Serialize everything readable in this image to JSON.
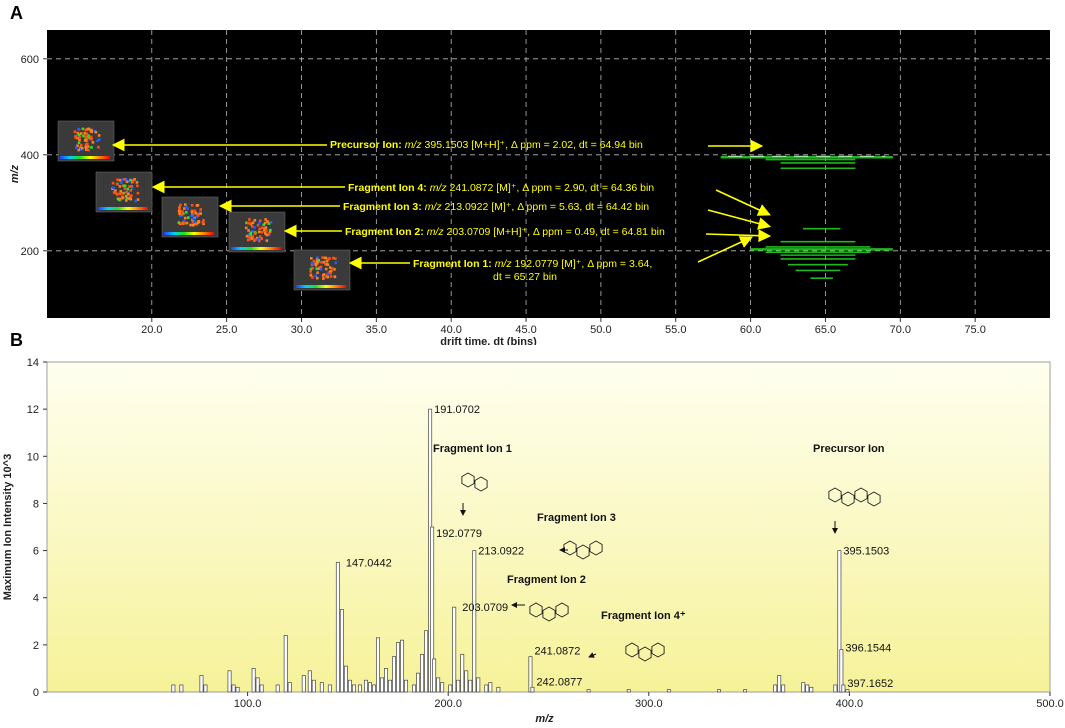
{
  "panels": {
    "a_label": "A",
    "b_label": "B"
  },
  "chart_data": [
    {
      "type": "scatter",
      "panel": "A",
      "xlabel": "drift time, dt (bins)",
      "ylabel": "m/z",
      "xlim": [
        13,
        80
      ],
      "ylim": [
        60,
        660
      ],
      "xticks": [
        "20.0",
        "25.0",
        "30.0",
        "35.0",
        "40.0",
        "45.0",
        "50.0",
        "55.0",
        "60.0",
        "65.0",
        "70.0",
        "75.0"
      ],
      "xtick_values": [
        20,
        25,
        30,
        35,
        40,
        45,
        50,
        55,
        60,
        65,
        70,
        75
      ],
      "yticks": [
        "200",
        "400",
        "600"
      ],
      "ytick_values": [
        200,
        400,
        600
      ],
      "grid": true,
      "background": "#000000",
      "trace_color": "#22cc22",
      "traces": [
        {
          "mz": 395,
          "dt_start": 58,
          "dt_end": 69.5
        },
        {
          "mz": 390,
          "dt_start": 61,
          "dt_end": 67
        },
        {
          "mz": 383,
          "dt_start": 62,
          "dt_end": 67
        },
        {
          "mz": 372,
          "dt_start": 62,
          "dt_end": 67
        },
        {
          "mz": 246,
          "dt_start": 63.5,
          "dt_end": 66
        },
        {
          "mz": 219,
          "dt_start": 62,
          "dt_end": 67
        },
        {
          "mz": 208,
          "dt_start": 61,
          "dt_end": 68
        },
        {
          "mz": 203,
          "dt_start": 60,
          "dt_end": 69.5
        },
        {
          "mz": 197,
          "dt_start": 61,
          "dt_end": 68
        },
        {
          "mz": 191,
          "dt_start": 62,
          "dt_end": 67
        },
        {
          "mz": 183,
          "dt_start": 62,
          "dt_end": 67
        },
        {
          "mz": 171,
          "dt_start": 62.5,
          "dt_end": 66.5
        },
        {
          "mz": 159,
          "dt_start": 63,
          "dt_end": 66
        },
        {
          "mz": 143,
          "dt_start": 64,
          "dt_end": 65.5
        }
      ],
      "annotations": [
        {
          "bold": "Precursor Ion: ",
          "italic": "m/z",
          "rest": " 395.1503 [M+H]⁺, Δ ppm = 2.02, dt = 64.94 bin"
        },
        {
          "bold": "Fragment Ion 4: ",
          "italic": "m/z",
          "rest": " 241.0872 [M]⁺, Δ ppm = 2.90, dt = 64.36 bin"
        },
        {
          "bold": "Fragment Ion 3: ",
          "italic": "m/z",
          "rest": " 213.0922 [M]⁺, Δ ppm = 5.63, dt = 64.42 bin"
        },
        {
          "bold": "Fragment Ion 2: ",
          "italic": "m/z",
          "rest": " 203.0709 [M+H]⁺, Δ ppm = 0.49, dt = 64.81 bin"
        },
        {
          "bold": "Fragment Ion 1: ",
          "italic": "m/z",
          "rest": " 192.0779 [M]⁺, Δ ppm = 3.64,",
          "line2": "dt = 65.27 bin"
        }
      ]
    },
    {
      "type": "bar",
      "panel": "B",
      "xlabel": "m/z",
      "ylabel": "Maximum Ion Intensity 10^3",
      "xlim": [
        0,
        500
      ],
      "ylim": [
        0,
        14
      ],
      "xticks": [
        "100.0",
        "200.0",
        "300.0",
        "400.0",
        "500.0"
      ],
      "xtick_values": [
        100,
        200,
        300,
        400,
        500
      ],
      "yticks": [
        "0",
        "2",
        "4",
        "6",
        "8",
        "10",
        "12",
        "14"
      ],
      "ytick_values": [
        0,
        2,
        4,
        6,
        8,
        10,
        12,
        14
      ],
      "grid": false,
      "background_gradient": [
        "#fffff0",
        "#f6f299"
      ],
      "peaks": [
        {
          "x": 63,
          "y": 0.3
        },
        {
          "x": 67,
          "y": 0.3
        },
        {
          "x": 77,
          "y": 0.7
        },
        {
          "x": 79,
          "y": 0.3
        },
        {
          "x": 91,
          "y": 0.9
        },
        {
          "x": 93,
          "y": 0.3
        },
        {
          "x": 95,
          "y": 0.2
        },
        {
          "x": 103,
          "y": 1.0
        },
        {
          "x": 105,
          "y": 0.6
        },
        {
          "x": 107,
          "y": 0.3
        },
        {
          "x": 115,
          "y": 0.3
        },
        {
          "x": 119,
          "y": 2.4
        },
        {
          "x": 121,
          "y": 0.4
        },
        {
          "x": 128,
          "y": 0.7
        },
        {
          "x": 131,
          "y": 0.9
        },
        {
          "x": 133,
          "y": 0.5
        },
        {
          "x": 137,
          "y": 0.4
        },
        {
          "x": 141,
          "y": 0.3
        },
        {
          "x": 145,
          "y": 5.5
        },
        {
          "x": 147,
          "y": 3.5
        },
        {
          "x": 149,
          "y": 1.1
        },
        {
          "x": 151,
          "y": 0.5
        },
        {
          "x": 153,
          "y": 0.3
        },
        {
          "x": 156,
          "y": 0.3
        },
        {
          "x": 159,
          "y": 0.5
        },
        {
          "x": 161,
          "y": 0.4
        },
        {
          "x": 163,
          "y": 0.3
        },
        {
          "x": 165,
          "y": 2.3
        },
        {
          "x": 167,
          "y": 0.6
        },
        {
          "x": 169,
          "y": 1.0
        },
        {
          "x": 171,
          "y": 0.5
        },
        {
          "x": 173,
          "y": 1.5
        },
        {
          "x": 175,
          "y": 2.1
        },
        {
          "x": 177,
          "y": 2.2
        },
        {
          "x": 179,
          "y": 0.5
        },
        {
          "x": 183,
          "y": 0.3
        },
        {
          "x": 185,
          "y": 0.8
        },
        {
          "x": 187,
          "y": 1.6
        },
        {
          "x": 189,
          "y": 2.6
        },
        {
          "x": 191,
          "y": 12.0
        },
        {
          "x": 192,
          "y": 7.0
        },
        {
          "x": 193,
          "y": 1.4
        },
        {
          "x": 195,
          "y": 0.6
        },
        {
          "x": 197,
          "y": 0.4
        },
        {
          "x": 201,
          "y": 0.3
        },
        {
          "x": 203,
          "y": 3.6
        },
        {
          "x": 205,
          "y": 0.5
        },
        {
          "x": 207,
          "y": 1.6
        },
        {
          "x": 209,
          "y": 0.9
        },
        {
          "x": 211,
          "y": 0.5
        },
        {
          "x": 213,
          "y": 6.0
        },
        {
          "x": 215,
          "y": 0.6
        },
        {
          "x": 219,
          "y": 0.3
        },
        {
          "x": 221,
          "y": 0.4
        },
        {
          "x": 225,
          "y": 0.2
        },
        {
          "x": 241,
          "y": 1.5
        },
        {
          "x": 242,
          "y": 0.2
        },
        {
          "x": 270,
          "y": 0.1
        },
        {
          "x": 290,
          "y": 0.1
        },
        {
          "x": 310,
          "y": 0.1
        },
        {
          "x": 335,
          "y": 0.1
        },
        {
          "x": 348,
          "y": 0.1
        },
        {
          "x": 363,
          "y": 0.3
        },
        {
          "x": 365,
          "y": 0.7
        },
        {
          "x": 367,
          "y": 0.3
        },
        {
          "x": 377,
          "y": 0.4
        },
        {
          "x": 379,
          "y": 0.3
        },
        {
          "x": 381,
          "y": 0.2
        },
        {
          "x": 393,
          "y": 0.3
        },
        {
          "x": 395,
          "y": 6.0
        },
        {
          "x": 396,
          "y": 1.8
        },
        {
          "x": 397,
          "y": 0.3
        },
        {
          "x": 399,
          "y": 0.1
        }
      ],
      "peak_labels": [
        {
          "text": "191.0702",
          "x": 191,
          "y": 12.0
        },
        {
          "text": "147.0442",
          "x": 147,
          "y": 5.5
        },
        {
          "text": "192.0779",
          "x": 192,
          "y": 7.0
        },
        {
          "text": "213.0922",
          "x": 213,
          "y": 6.0
        },
        {
          "text": "203.0709",
          "x": 203,
          "y": 3.6
        },
        {
          "text": "241.0872",
          "x": 241,
          "y": 1.5
        },
        {
          "text": "242.0877",
          "x": 242,
          "y": 0.2
        },
        {
          "text": "395.1503",
          "x": 395,
          "y": 6.0
        },
        {
          "text": "396.1544",
          "x": 396,
          "y": 1.8
        },
        {
          "text": "397.1652",
          "x": 397,
          "y": 0.3
        }
      ],
      "fragment_labels": [
        "Fragment Ion 1",
        "Fragment Ion 3",
        "Fragment Ion 2",
        "Fragment Ion 4⁺",
        "Precursor Ion"
      ]
    }
  ]
}
